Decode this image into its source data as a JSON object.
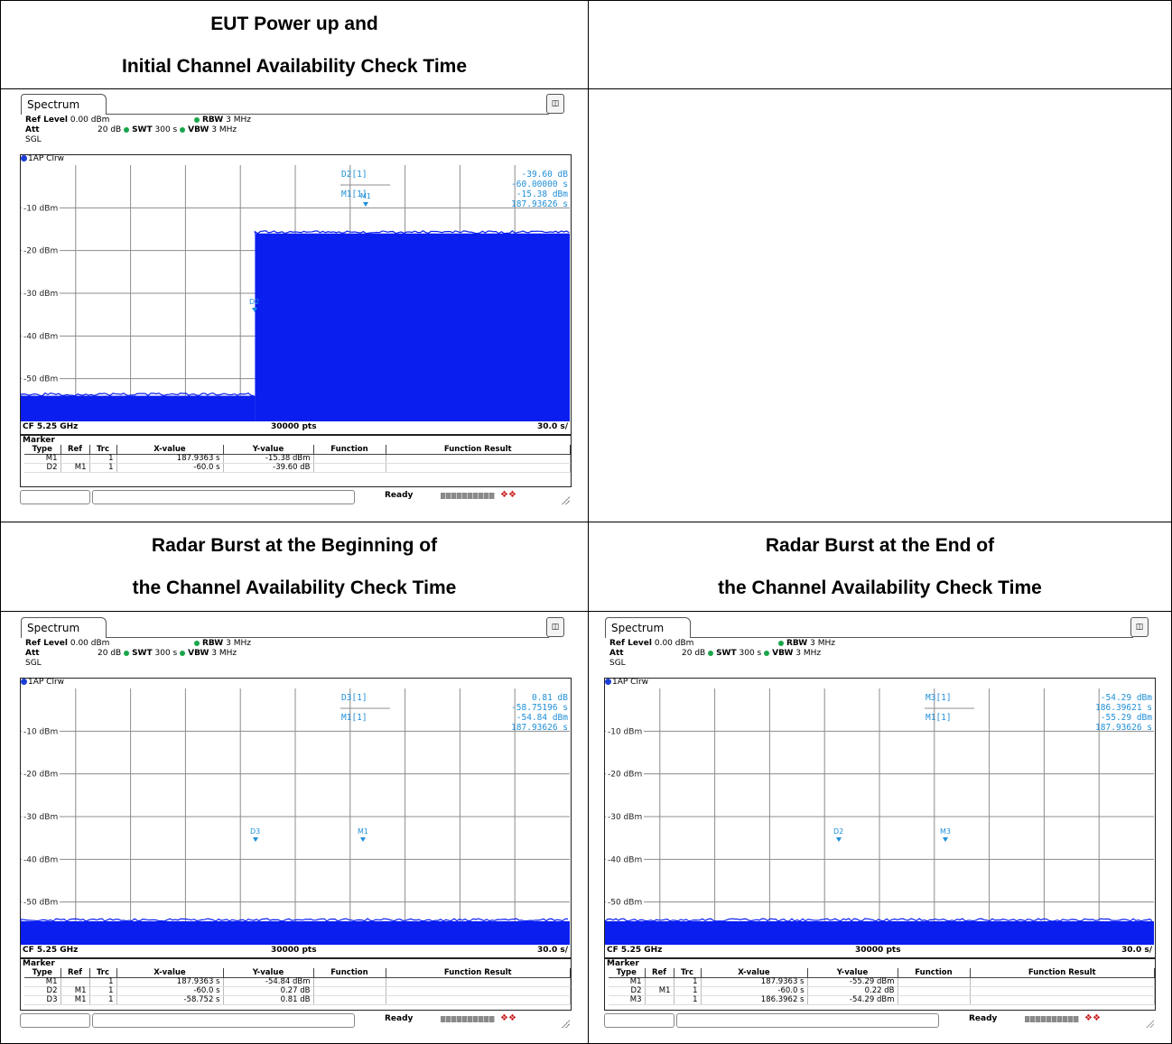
{
  "cells": {
    "top_left_title": [
      "EUT Power up and",
      "Initial Channel Availability Check Time"
    ],
    "mid_left_title": [
      "Radar Burst at the Beginning of",
      "the Channel Availability Check Time"
    ],
    "mid_right_title": [
      "Radar Burst at the End of",
      "the Channel Availability Check Time"
    ]
  },
  "colors": {
    "trace": "#0a1ef0",
    "marker_text": "#1f8fd8",
    "grid": "#8c8c8c"
  },
  "shots": [
    {
      "id": "power-up",
      "tab": "Spectrum",
      "battery_icon": "battery-icon",
      "ref_level_label": "Ref Level",
      "ref_level_value": "0.00 dBm",
      "att_label": "Att",
      "att_value": "20 dB",
      "swt_label": "SWT",
      "swt_value": "300 s",
      "rbw_label": "RBW",
      "rbw_value": "3 MHz",
      "vbw_label": "VBW",
      "vbw_value": "3 MHz",
      "sgl": "SGL",
      "trace_label": "1AP Clrw",
      "y_ticks": [
        "-10 dBm",
        "-20 dBm",
        "-30 dBm",
        "-40 dBm",
        "-50 dBm"
      ],
      "readout_labels": [
        "D2[1]",
        "M1[1]"
      ],
      "readout_values": [
        "-39.60 dB",
        "-60.00000 s",
        "-15.38 dBm",
        "187.93626 s"
      ],
      "plot_markers": [
        "M1",
        "D2"
      ],
      "footer_left": "CF 5.25 GHz",
      "footer_center": "30000 pts",
      "footer_right": "30.0 s/",
      "marker_title": "Marker",
      "headers": [
        "Type",
        "Ref",
        "Trc",
        "X-value",
        "Y-value",
        "Function",
        "Function Result"
      ],
      "rows": [
        [
          "M1",
          "",
          "1",
          "187.9363 s",
          "-15.38 dBm",
          "",
          ""
        ],
        [
          "D2",
          "M1",
          "1",
          "-60.0 s",
          "-39.60 dB",
          "",
          ""
        ]
      ],
      "status": "Ready",
      "chart_data": {
        "type": "area",
        "ylim": [
          -60,
          0
        ],
        "xlim": [
          0,
          300
        ],
        "x_unit": "s",
        "y_unit": "dBm",
        "segments": [
          {
            "x": [
              0,
              128
            ],
            "y": -54
          },
          {
            "x": [
              128,
              300
            ],
            "y": -16
          }
        ]
      }
    },
    {
      "id": "burst-beginning",
      "tab": "Spectrum",
      "battery_icon": "battery-icon",
      "ref_level_label": "Ref Level",
      "ref_level_value": "0.00 dBm",
      "att_label": "Att",
      "att_value": "20 dB",
      "swt_label": "SWT",
      "swt_value": "300 s",
      "rbw_label": "RBW",
      "rbw_value": "3 MHz",
      "vbw_label": "VBW",
      "vbw_value": "3 MHz",
      "sgl": "SGL",
      "trace_label": "1AP Clrw",
      "y_ticks": [
        "-10 dBm",
        "-20 dBm",
        "-30 dBm",
        "-40 dBm",
        "-50 dBm"
      ],
      "readout_labels": [
        "D3[1]",
        "M1[1]"
      ],
      "readout_values": [
        "0.81 dB",
        "-58.75196 s",
        "-54.84 dBm",
        "187.93626 s"
      ],
      "plot_markers": [
        "D3",
        "M1"
      ],
      "footer_left": "CF 5.25 GHz",
      "footer_center": "30000 pts",
      "footer_right": "30.0 s/",
      "marker_title": "Marker",
      "headers": [
        "Type",
        "Ref",
        "Trc",
        "X-value",
        "Y-value",
        "Function",
        "Function Result"
      ],
      "rows": [
        [
          "M1",
          "",
          "1",
          "187.9363 s",
          "-54.84 dBm",
          "",
          ""
        ],
        [
          "D2",
          "M1",
          "1",
          "-60.0 s",
          "0.27 dB",
          "",
          ""
        ],
        [
          "D3",
          "M1",
          "1",
          "-58.752 s",
          "0.81 dB",
          "",
          ""
        ]
      ],
      "status": "Ready",
      "chart_data": {
        "type": "area",
        "ylim": [
          -60,
          0
        ],
        "xlim": [
          0,
          300
        ],
        "x_unit": "s",
        "y_unit": "dBm",
        "segments": [
          {
            "x": [
              0,
              300
            ],
            "y": -54.5
          }
        ]
      }
    },
    {
      "id": "burst-end",
      "tab": "Spectrum",
      "battery_icon": "battery-icon",
      "ref_level_label": "Ref Level",
      "ref_level_value": "0.00 dBm",
      "att_label": "Att",
      "att_value": "20 dB",
      "swt_label": "SWT",
      "swt_value": "300 s",
      "rbw_label": "RBW",
      "rbw_value": "3 MHz",
      "vbw_label": "VBW",
      "vbw_value": "3 MHz",
      "sgl": "SGL",
      "trace_label": "1AP Clrw",
      "y_ticks": [
        "-10 dBm",
        "-20 dBm",
        "-30 dBm",
        "-40 dBm",
        "-50 dBm"
      ],
      "readout_labels": [
        "M3[1]",
        "M1[1]"
      ],
      "readout_values": [
        "-54.29 dBm",
        "186.39621 s",
        "-55.29 dBm",
        "187.93626 s"
      ],
      "plot_markers": [
        "D2",
        "M3"
      ],
      "footer_left": "CF 5.25 GHz",
      "footer_center": "30000 pts",
      "footer_right": "30.0 s/",
      "marker_title": "Marker",
      "headers": [
        "Type",
        "Ref",
        "Trc",
        "X-value",
        "Y-value",
        "Function",
        "Function Result"
      ],
      "rows": [
        [
          "M1",
          "",
          "1",
          "187.9363 s",
          "-55.29 dBm",
          "",
          ""
        ],
        [
          "D2",
          "M1",
          "1",
          "-60.0 s",
          "0.22 dB",
          "",
          ""
        ],
        [
          "M3",
          "",
          "1",
          "186.3962 s",
          "-54.29 dBm",
          "",
          ""
        ]
      ],
      "status": "Ready",
      "chart_data": {
        "type": "area",
        "ylim": [
          -60,
          0
        ],
        "xlim": [
          0,
          300
        ],
        "x_unit": "s",
        "y_unit": "dBm",
        "segments": [
          {
            "x": [
              0,
              300
            ],
            "y": -54.5
          }
        ]
      }
    }
  ]
}
